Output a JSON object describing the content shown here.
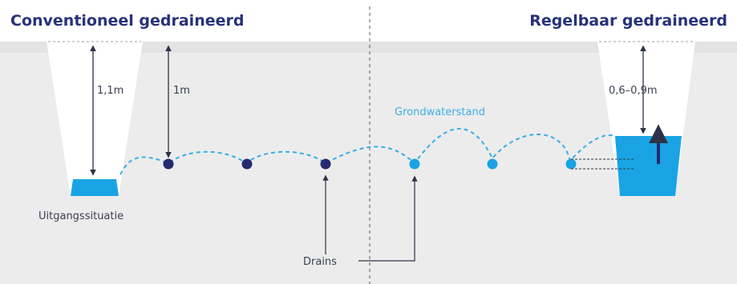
{
  "titles": {
    "left": "Conventioneel gedraineerd",
    "right": "Regelbaar gedraineerd"
  },
  "labels": {
    "depth_left_ditch": "1,1m",
    "depth_left_drain": "1m",
    "depth_right_ditch": "0,6–0,9m",
    "groundwater": "Grondwaterstand",
    "start_situation": "Uitgangssituatie",
    "drains": "Drains"
  },
  "colors": {
    "title": "#27327a",
    "soil": "#ececec",
    "water": "#1aa3e4",
    "water_line": "#3aaee6",
    "drain_conventional": "#262a70",
    "drain_controllable": "#1aa3e4",
    "arrow": "#2d3346",
    "text": "#3a3f52"
  }
}
